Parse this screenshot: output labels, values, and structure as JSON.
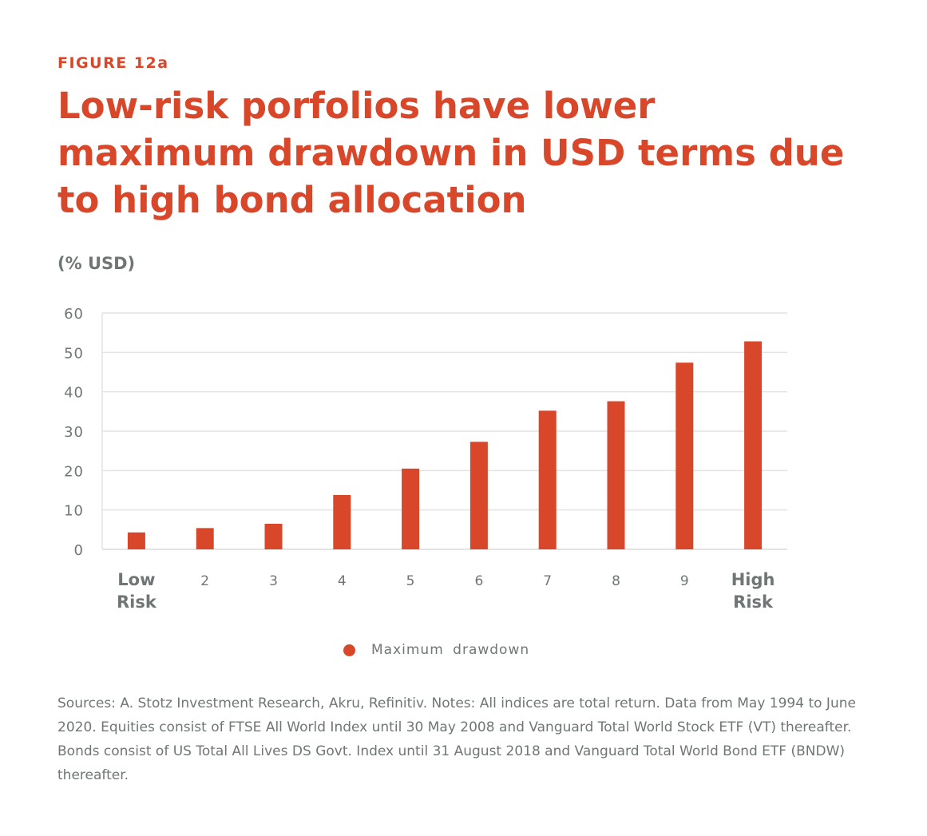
{
  "figure_label": "FIGURE 12a",
  "title": "Low-risk porfolios have lower maximum drawdown in USD terms due to high bond allocation",
  "colors": {
    "accent": "#d9472b",
    "text_gray": "#6f7675",
    "grid": "#e1e4e2"
  },
  "chart_data": {
    "type": "bar",
    "ylabel": "(% USD)",
    "categories": [
      "Low Risk",
      "2",
      "3",
      "4",
      "5",
      "6",
      "7",
      "8",
      "9",
      "High Risk"
    ],
    "series": [
      {
        "name": "Maximum drawdown",
        "values": [
          4.3,
          5.4,
          6.5,
          13.8,
          20.5,
          27.3,
          35.2,
          37.6,
          47.4,
          52.8
        ]
      }
    ],
    "ylim": [
      0,
      60
    ],
    "yticks": [
      0,
      10,
      20,
      30,
      40,
      50,
      60
    ],
    "grid": true,
    "legend_position": "bottom-center"
  },
  "legend_label": "Maximum  drawdown",
  "notes": "Sources: A. Stotz Investment Research, Akru, Refinitiv. Notes: All indices are total return. Data from May 1994 to June 2020. Equities consist of FTSE All World Index until 30 May 2008 and Vanguard Total World Stock ETF (VT) thereafter. Bonds consist of US Total All Lives DS Govt. Index until 31 August 2018 and Vanguard Total World Bond ETF (BNDW) thereafter."
}
